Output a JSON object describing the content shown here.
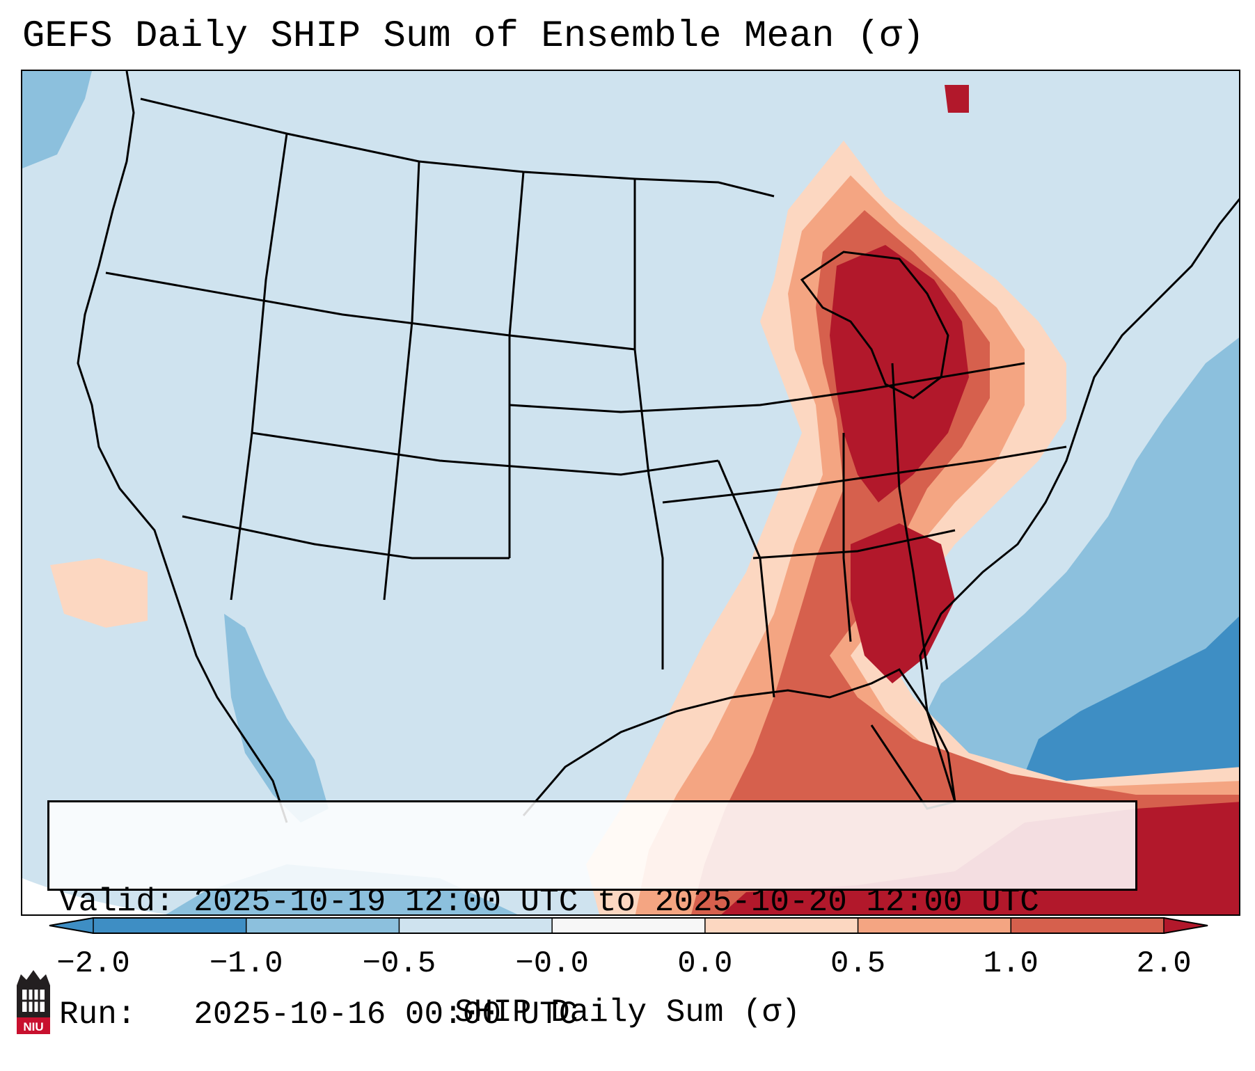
{
  "title": "GEFS Daily SHIP Sum of Ensemble Mean (σ)",
  "info": {
    "valid_label": "Valid:",
    "valid_value": "2025-10-19 12:00 UTC to 2025-10-20 12:00 UTC",
    "run_label": "Run:",
    "run_value": "2025-10-16 00:00 UTC"
  },
  "colorbar": {
    "label": "SHIP Daily Sum (σ)",
    "ticks": [
      "−2.0",
      "−1.0",
      "−0.5",
      "−0.0",
      "0.0",
      "0.5",
      "1.0",
      "2.0"
    ],
    "colors": [
      "#3e8ec4",
      "#8cc0dd",
      "#cfe3ef",
      "#f7f7f7",
      "#fcd7c1",
      "#f4a582",
      "#d6604d",
      "#b2182b"
    ],
    "extend": "both"
  },
  "map": {
    "field": "SHIP daily sum anomaly",
    "region": "Contiguous United States",
    "projection": "Lambert Conformal"
  },
  "logo": {
    "text": "NIU",
    "colors": {
      "dark": "#231f20",
      "red": "#c8102e"
    }
  }
}
